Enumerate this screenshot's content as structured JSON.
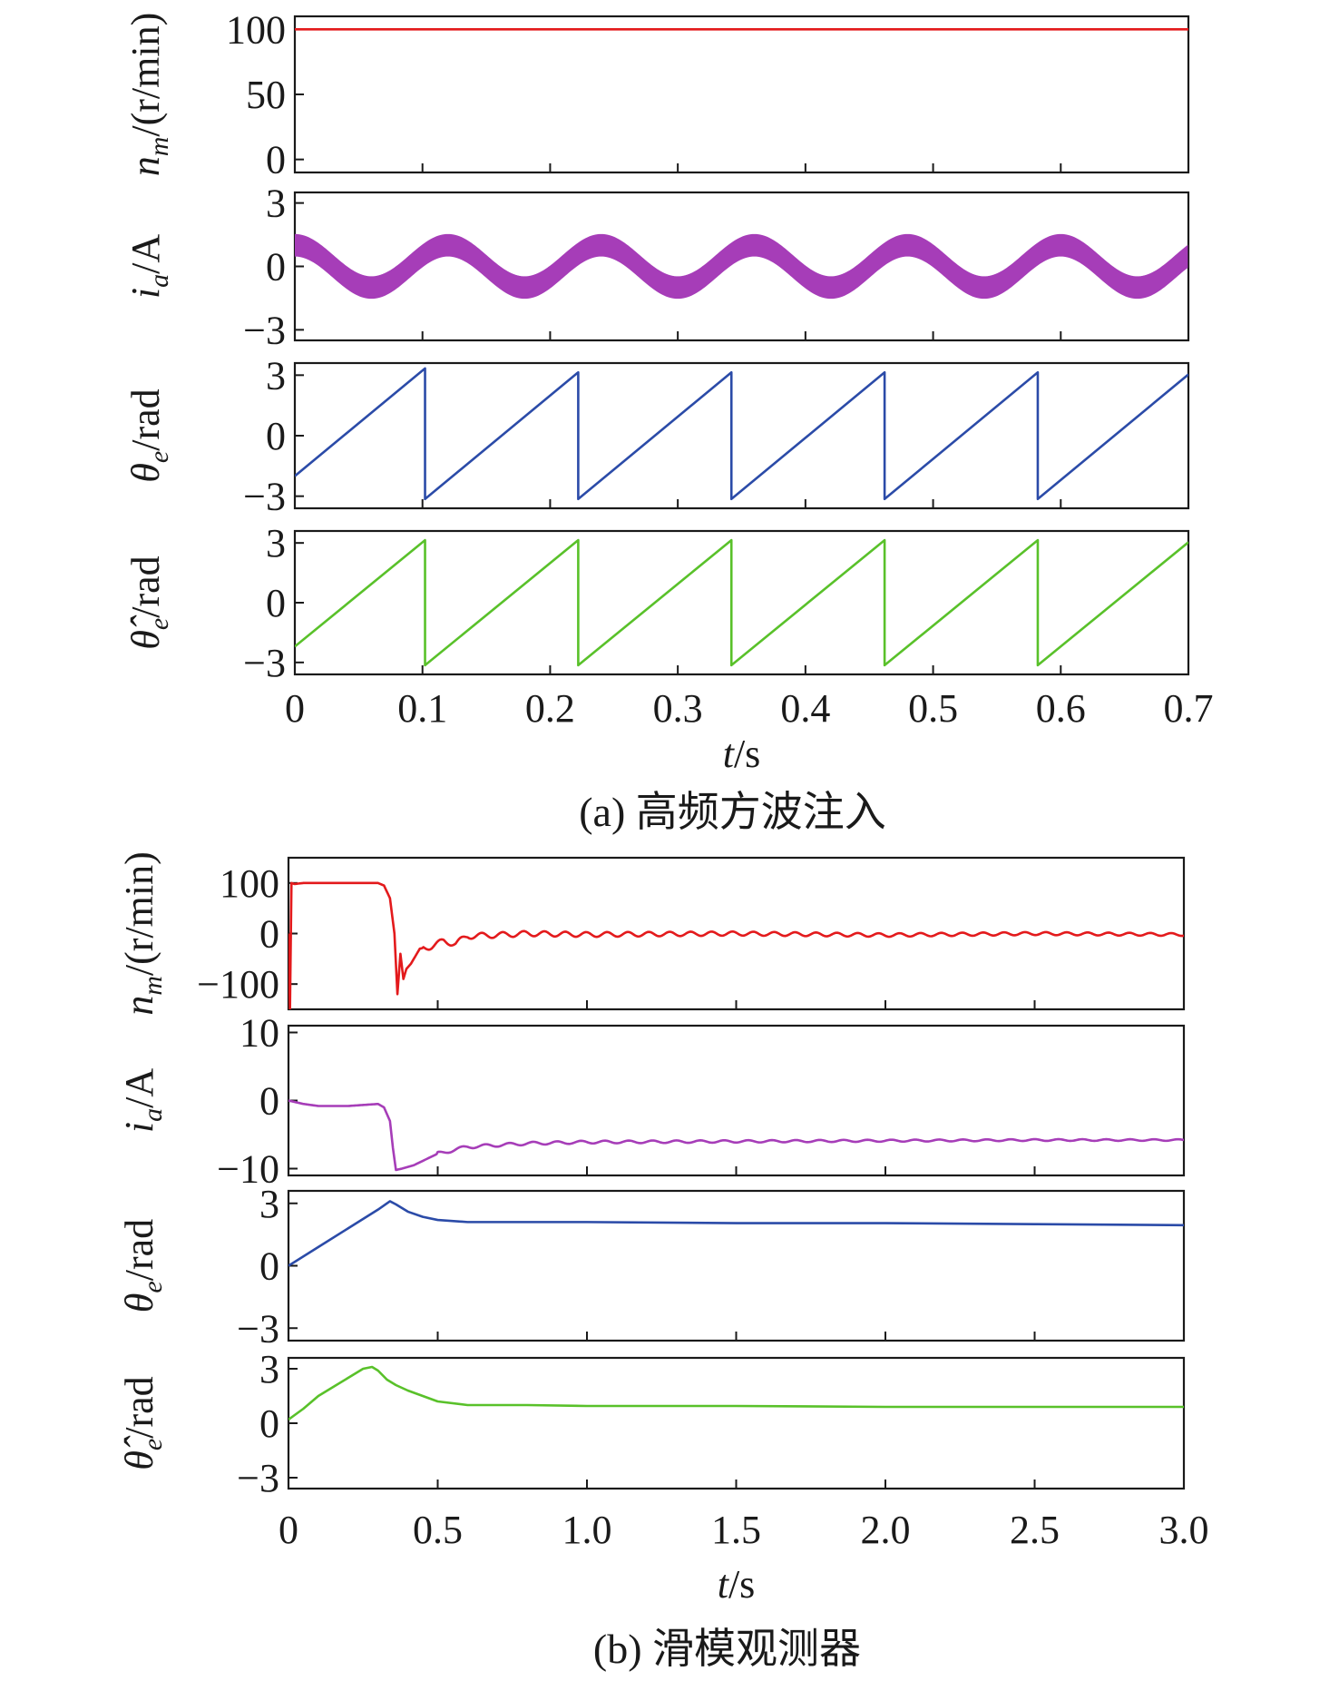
{
  "chart_data": [
    {
      "type": "line",
      "caption": "(a) 高频方波注入",
      "xlabel": "t/s",
      "xlim": [
        0,
        0.7
      ],
      "xticks": [
        "0",
        "0.1",
        "0.2",
        "0.3",
        "0.4",
        "0.5",
        "0.6",
        "0.7"
      ],
      "grid": false,
      "subplots": [
        {
          "ylabel": "nm/(r/min)",
          "ylim": [
            -10,
            110
          ],
          "yticks": [
            "100",
            "50",
            "0"
          ],
          "color": "#e31a1c",
          "series": [
            {
              "x": [
                0,
                0.7
              ],
              "y": [
                100,
                100
              ]
            }
          ]
        },
        {
          "ylabel": "ia/A",
          "ylim": [
            -3.5,
            3.5
          ],
          "yticks": [
            "3",
            "0",
            "−3"
          ],
          "color": "#a63db8",
          "band_halfwidth": 0.5,
          "series": [
            {
              "shape": "sine",
              "amplitude": 1.0,
              "period": 0.12,
              "phase_rad": 1.57,
              "x_range": [
                0,
                0.7
              ]
            }
          ]
        },
        {
          "ylabel": "θe/rad",
          "ylim": [
            -3.6,
            3.6
          ],
          "yticks": [
            "3",
            "0",
            "−3"
          ],
          "color": "#2b4ba8",
          "series": [
            {
              "shape": "sawtooth",
              "start": -2.0,
              "low": -3.14,
              "high": 3.14,
              "wraps_at": [
                0.102,
                0.222,
                0.342,
                0.462,
                0.582
              ],
              "x_range": [
                0,
                0.7
              ]
            }
          ]
        },
        {
          "ylabel": "θ̂e/rad",
          "ylim": [
            -3.6,
            3.6
          ],
          "yticks": [
            "3",
            "0",
            "−3"
          ],
          "color": "#59c12a",
          "series": [
            {
              "shape": "sawtooth",
              "start": -2.2,
              "low": -3.14,
              "high": 3.14,
              "wraps_at": [
                0.102,
                0.222,
                0.342,
                0.462,
                0.582
              ],
              "x_range": [
                0,
                0.7
              ]
            }
          ]
        }
      ]
    },
    {
      "type": "line",
      "caption": "(b) 滑模观测器",
      "xlabel": "t/s",
      "xlim": [
        0,
        3.0
      ],
      "xticks": [
        "0",
        "0.5",
        "1.0",
        "1.5",
        "2.0",
        "2.5",
        "3.0"
      ],
      "grid": false,
      "subplots": [
        {
          "ylabel": "nm/(r/min)",
          "ylim": [
            -150,
            150
          ],
          "yticks": [
            "100",
            "0",
            "−100"
          ],
          "color": "#e31a1c",
          "series": [
            {
              "x": [
                0,
                0.005,
                0.01,
                0.02,
                0.05,
                0.1,
                0.2,
                0.3,
                0.32,
                0.34,
                0.355,
                0.365,
                0.375,
                0.385,
                0.395,
                0.41,
                0.44,
                0.48,
                0.52,
                0.56,
                0.6,
                0.7,
                0.8,
                1.0,
                1.5,
                2.0,
                2.5,
                3.0
              ],
              "y": [
                0,
                -150,
                100,
                98,
                100,
                100,
                100,
                100,
                95,
                70,
                0,
                -120,
                -40,
                -90,
                -70,
                -60,
                -30,
                -25,
                -15,
                -20,
                -5,
                -3,
                0,
                -2,
                0,
                -3,
                0,
                -2
              ],
              "ripple_amplitude": 6,
              "ripple_period": 0.07,
              "ripple_start": 0.45
            }
          ]
        },
        {
          "ylabel": "ia/A",
          "ylim": [
            -11,
            11
          ],
          "yticks": [
            "10",
            "0",
            "−10"
          ],
          "color": "#a63db8",
          "series": [
            {
              "x": [
                0,
                0.05,
                0.1,
                0.2,
                0.3,
                0.32,
                0.34,
                0.35,
                0.36,
                0.38,
                0.42,
                0.5,
                0.6,
                0.8,
                1.0,
                1.5,
                2.0,
                2.5,
                3.0
              ],
              "y": [
                0,
                -0.5,
                -0.8,
                -0.8,
                -0.5,
                -1,
                -3,
                -7,
                -10.2,
                -10,
                -9.5,
                -7.8,
                -6.8,
                -6.3,
                -6.1,
                -6,
                -5.9,
                -5.8,
                -5.8
              ],
              "ripple_amplitude": 0.25,
              "ripple_period": 0.08,
              "ripple_start": 0.5
            }
          ]
        },
        {
          "ylabel": "θe/rad",
          "ylim": [
            -3.6,
            3.6
          ],
          "yticks": [
            "3",
            "0",
            "−3"
          ],
          "color": "#2b4ba8",
          "series": [
            {
              "x": [
                0,
                0.1,
                0.2,
                0.3,
                0.34,
                0.36,
                0.4,
                0.45,
                0.5,
                0.6,
                0.8,
                1.0,
                1.5,
                2.0,
                2.5,
                3.0
              ],
              "y": [
                0,
                0.9,
                1.8,
                2.7,
                3.1,
                2.95,
                2.6,
                2.35,
                2.2,
                2.1,
                2.1,
                2.1,
                2.05,
                2.05,
                2.0,
                1.95
              ]
            }
          ]
        },
        {
          "ylabel": "θ̂e/rad",
          "ylim": [
            -3.6,
            3.6
          ],
          "yticks": [
            "3",
            "0",
            "−3"
          ],
          "color": "#59c12a",
          "series": [
            {
              "x": [
                0,
                0.05,
                0.1,
                0.15,
                0.2,
                0.25,
                0.28,
                0.3,
                0.33,
                0.36,
                0.4,
                0.45,
                0.5,
                0.6,
                0.8,
                1.0,
                1.5,
                2.0,
                2.5,
                3.0
              ],
              "y": [
                0.2,
                0.8,
                1.5,
                2.0,
                2.5,
                3.0,
                3.1,
                2.9,
                2.4,
                2.1,
                1.8,
                1.5,
                1.2,
                1.0,
                1.0,
                0.95,
                0.95,
                0.9,
                0.9,
                0.9
              ]
            }
          ]
        }
      ]
    }
  ]
}
